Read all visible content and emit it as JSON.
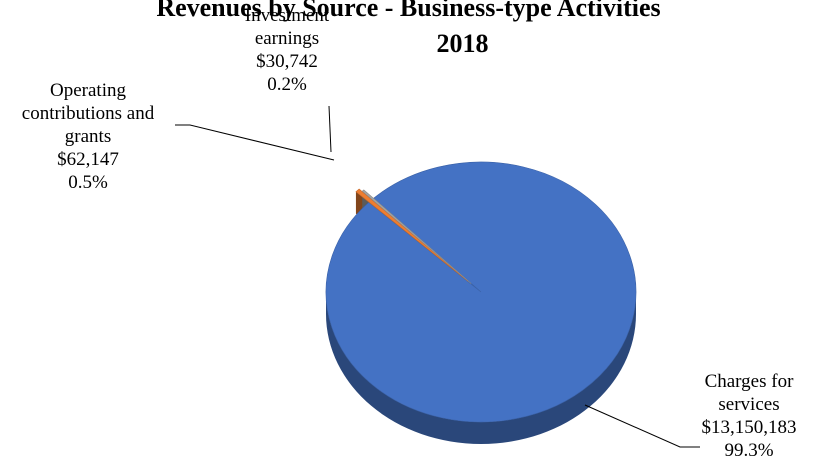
{
  "chart_data": {
    "type": "pie",
    "title_line1": "Revenues by Source - Business-type Activities",
    "title_line2": "2018",
    "slices": [
      {
        "label_lines": [
          "Charges for",
          "services"
        ],
        "amount": "$13,150,183",
        "value": 13150183,
        "percent": "99.3%",
        "color": "#4472C4"
      },
      {
        "label_lines": [
          "Operating",
          "contributions and",
          "grants"
        ],
        "amount": "$62,147",
        "value": 62147,
        "percent": "0.5%",
        "color": "#ED7D31"
      },
      {
        "label_lines": [
          "Investment",
          "earnings"
        ],
        "amount": "$30,742",
        "value": 30742,
        "percent": "0.2%",
        "color": "#A5A5A5"
      }
    ]
  }
}
